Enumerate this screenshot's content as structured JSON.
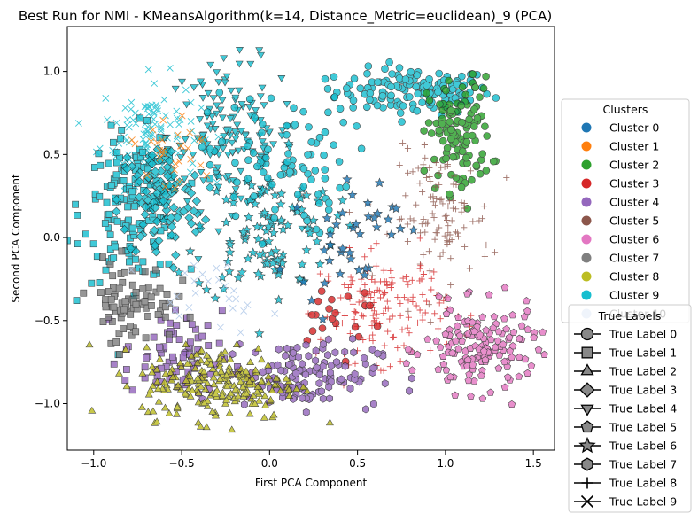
{
  "chart_data": {
    "type": "scatter",
    "title": "Best Run for NMI - KMeansAlgorithm(k=14, Distance_Metric=euclidean)_9 (PCA)",
    "xlabel": "First PCA Component",
    "ylabel": "Second PCA Component",
    "xlim": [
      -1.15,
      1.62
    ],
    "ylim": [
      -1.28,
      1.27
    ],
    "xticks": [
      -1.0,
      -0.5,
      0.0,
      0.5,
      1.0,
      1.5
    ],
    "xtick_labels": [
      "−1.0",
      "−0.5",
      "0.0",
      "0.5",
      "1.0",
      "1.5"
    ],
    "yticks": [
      -1.0,
      -0.5,
      0.0,
      0.5,
      1.0
    ],
    "ytick_labels": [
      "−1.0",
      "−0.5",
      "0.0",
      "0.5",
      "1.0"
    ],
    "grid": false,
    "clusters_legend": {
      "title": "Clusters",
      "placement": "right",
      "entries": [
        {
          "name": "Cluster 0",
          "color": "#1f77b4"
        },
        {
          "name": "Cluster 1",
          "color": "#ff7f0e"
        },
        {
          "name": "Cluster 2",
          "color": "#2ca02c"
        },
        {
          "name": "Cluster 3",
          "color": "#d62728"
        },
        {
          "name": "Cluster 4",
          "color": "#9467bd"
        },
        {
          "name": "Cluster 5",
          "color": "#8c564b"
        },
        {
          "name": "Cluster 6",
          "color": "#e377c2"
        },
        {
          "name": "Cluster 7",
          "color": "#7f7f7f"
        },
        {
          "name": "Cluster 8",
          "color": "#bcbd22"
        },
        {
          "name": "Cluster 9",
          "color": "#17becf"
        },
        {
          "name": "Cluster 10",
          "color": "#aec7e8"
        }
      ]
    },
    "true_labels_legend": {
      "title": "True Labels",
      "placement": "lower-right",
      "entries": [
        {
          "name": "True Label 0",
          "marker": "circle"
        },
        {
          "name": "True Label 1",
          "marker": "square"
        },
        {
          "name": "True Label 2",
          "marker": "triangle-up"
        },
        {
          "name": "True Label 3",
          "marker": "diamond"
        },
        {
          "name": "True Label 4",
          "marker": "triangle-down"
        },
        {
          "name": "True Label 5",
          "marker": "pentagon"
        },
        {
          "name": "True Label 6",
          "marker": "star"
        },
        {
          "name": "True Label 7",
          "marker": "hexagon"
        },
        {
          "name": "True Label 8",
          "marker": "plus"
        },
        {
          "name": "True Label 9",
          "marker": "x"
        }
      ]
    },
    "groups": [
      {
        "cluster": 9,
        "marker": "circle",
        "color": "#17becf",
        "center": [
          0.82,
          0.88
        ],
        "spread": [
          0.22,
          0.07
        ],
        "n": 140
      },
      {
        "cluster": 9,
        "marker": "x",
        "color": "#17becf",
        "center": [
          -0.68,
          0.65
        ],
        "spread": [
          0.14,
          0.16
        ],
        "n": 110
      },
      {
        "cluster": 9,
        "marker": "triangle-down",
        "color": "#17becf",
        "center": [
          -0.22,
          0.62
        ],
        "spread": [
          0.18,
          0.22
        ],
        "n": 140
      },
      {
        "cluster": 9,
        "marker": "square",
        "color": "#17becf",
        "center": [
          -0.78,
          0.18
        ],
        "spread": [
          0.14,
          0.22
        ],
        "n": 150
      },
      {
        "cluster": 9,
        "marker": "diamond",
        "color": "#17becf",
        "center": [
          -0.62,
          0.22
        ],
        "spread": [
          0.12,
          0.18
        ],
        "n": 110
      },
      {
        "cluster": 9,
        "marker": "star",
        "color": "#17becf",
        "center": [
          -0.02,
          0.05
        ],
        "spread": [
          0.2,
          0.22
        ],
        "n": 110
      },
      {
        "cluster": 9,
        "marker": "circle",
        "color": "#17becf",
        "center": [
          0.05,
          0.45
        ],
        "spread": [
          0.2,
          0.22
        ],
        "n": 90
      },
      {
        "cluster": 2,
        "marker": "circle",
        "color": "#2ca02c",
        "center": [
          1.08,
          0.62
        ],
        "spread": [
          0.09,
          0.17
        ],
        "n": 120
      },
      {
        "cluster": 5,
        "marker": "plus",
        "color": "#8c564b",
        "center": [
          0.98,
          0.12
        ],
        "spread": [
          0.14,
          0.2
        ],
        "n": 110
      },
      {
        "cluster": 3,
        "marker": "plus",
        "color": "#d62728",
        "center": [
          0.65,
          -0.42
        ],
        "spread": [
          0.18,
          0.16
        ],
        "n": 150
      },
      {
        "cluster": 3,
        "marker": "circle",
        "color": "#d62728",
        "center": [
          0.38,
          -0.45
        ],
        "spread": [
          0.14,
          0.12
        ],
        "n": 20
      },
      {
        "cluster": 6,
        "marker": "pentagon",
        "color": "#e377c2",
        "center": [
          1.2,
          -0.68
        ],
        "spread": [
          0.16,
          0.13
        ],
        "n": 150
      },
      {
        "cluster": 4,
        "marker": "hexagon",
        "color": "#9467bd",
        "center": [
          0.18,
          -0.82
        ],
        "spread": [
          0.22,
          0.1
        ],
        "n": 140
      },
      {
        "cluster": 4,
        "marker": "square",
        "color": "#9467bd",
        "center": [
          -0.55,
          -0.72
        ],
        "spread": [
          0.14,
          0.14
        ],
        "n": 70
      },
      {
        "cluster": 8,
        "marker": "triangle-up",
        "color": "#bcbd22",
        "center": [
          -0.28,
          -0.88
        ],
        "spread": [
          0.22,
          0.11
        ],
        "n": 220
      },
      {
        "cluster": 7,
        "marker": "square",
        "color": "#7f7f7f",
        "center": [
          -0.78,
          -0.38
        ],
        "spread": [
          0.12,
          0.12
        ],
        "n": 80
      },
      {
        "cluster": 1,
        "marker": "x",
        "color": "#ff7f0e",
        "center": [
          -0.58,
          0.52
        ],
        "spread": [
          0.14,
          0.14
        ],
        "n": 30
      },
      {
        "cluster": 0,
        "marker": "star",
        "color": "#1f77b4",
        "center": [
          0.45,
          0.05
        ],
        "spread": [
          0.14,
          0.18
        ],
        "n": 40
      },
      {
        "cluster": 10,
        "marker": "x",
        "color": "#aec7e8",
        "center": [
          -0.35,
          -0.35
        ],
        "spread": [
          0.18,
          0.1
        ],
        "n": 25
      }
    ]
  }
}
